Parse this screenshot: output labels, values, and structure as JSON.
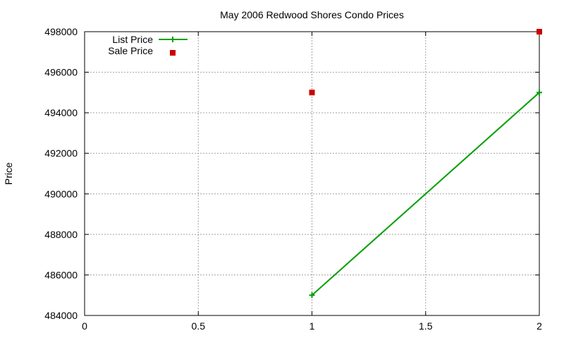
{
  "chart_data": {
    "type": "line",
    "title": "May 2006 Redwood Shores Condo Prices",
    "xlabel": "",
    "ylabel": "Price",
    "xlim": [
      0,
      2
    ],
    "ylim": [
      484000,
      498000
    ],
    "x_ticks": [
      0,
      0.5,
      1,
      1.5,
      2
    ],
    "x_tick_labels": [
      "0",
      "0.5",
      "1",
      "1.5",
      "2"
    ],
    "y_ticks": [
      484000,
      486000,
      488000,
      490000,
      492000,
      494000,
      496000,
      498000
    ],
    "y_tick_labels": [
      "484000",
      "486000",
      "488000",
      "490000",
      "492000",
      "494000",
      "496000",
      "498000"
    ],
    "grid": true,
    "legend_position": "top-left",
    "series": [
      {
        "name": "List Price",
        "style": "line-with-plus-markers",
        "color": "#00a000",
        "points": [
          [
            1,
            485000
          ],
          [
            2,
            495000
          ]
        ]
      },
      {
        "name": "Sale Price",
        "style": "square-markers",
        "color": "#cc0000",
        "points": [
          [
            1,
            495000
          ],
          [
            2,
            498000
          ]
        ]
      }
    ]
  }
}
